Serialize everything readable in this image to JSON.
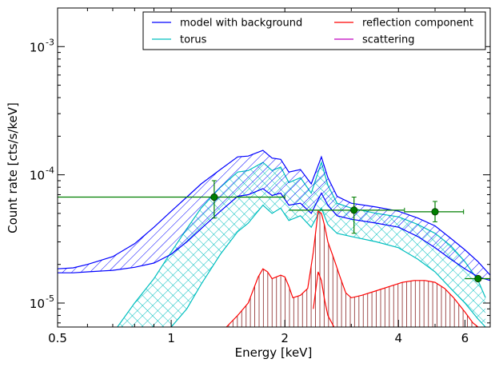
{
  "chart_data": {
    "type": "line",
    "title": "",
    "xlabel": "Energy [keV]",
    "ylabel": "Count rate [cts/s/keV]",
    "xscale": "log",
    "yscale": "log",
    "xlim": [
      0.5,
      7.0
    ],
    "ylim": [
      6.5e-06,
      0.002
    ],
    "grid": false,
    "legend_position": "top-right",
    "x_ticks": [
      {
        "value": 0.5,
        "label": "0.5"
      },
      {
        "value": 1,
        "label": "1"
      },
      {
        "value": 2,
        "label": "2"
      },
      {
        "value": 4,
        "label": "4"
      },
      {
        "value": 6,
        "label": "6"
      }
    ],
    "y_ticks": [
      {
        "value": 1e-05,
        "base": "10",
        "exp": "-5"
      },
      {
        "value": 0.0001,
        "base": "10",
        "exp": "-4"
      },
      {
        "value": 0.001,
        "base": "10",
        "exp": "-3"
      }
    ],
    "legend": [
      {
        "label": "model with background",
        "color": "#0000ff"
      },
      {
        "label": "reflection component",
        "color": "#ff0000"
      },
      {
        "label": "torus",
        "color": "#00bfbf"
      },
      {
        "label": "scattering",
        "color": "#bf00bf"
      }
    ],
    "series": [
      {
        "name": "model with background",
        "color": "#0000ff",
        "x": [
          0.5,
          0.55,
          0.6,
          0.7,
          0.8,
          0.9,
          1.0,
          1.1,
          1.2,
          1.35,
          1.5,
          1.6,
          1.75,
          1.85,
          1.95,
          2.05,
          2.2,
          2.35,
          2.5,
          2.6,
          2.75,
          3.0,
          3.5,
          4.0,
          4.5,
          5.0,
          5.5,
          6.0,
          6.5,
          7.0
        ],
        "upper": [
          1.85e-05,
          1.88e-05,
          2e-05,
          2.3e-05,
          2.9e-05,
          3.9e-05,
          5.2e-05,
          6.7e-05,
          8.5e-05,
          0.00011,
          0.000138,
          0.00014,
          0.000155,
          0.000135,
          0.000132,
          0.000105,
          0.00011,
          8.5e-05,
          0.000138,
          9.5e-05,
          6.8e-05,
          6e-05,
          5.6e-05,
          5.2e-05,
          4.6e-05,
          4e-05,
          3.2e-05,
          2.6e-05,
          2.1e-05,
          1.65e-05
        ],
        "lower": [
          1.72e-05,
          1.72e-05,
          1.75e-05,
          1.8e-05,
          1.9e-05,
          2.05e-05,
          2.4e-05,
          3e-05,
          3.8e-05,
          5.2e-05,
          6.8e-05,
          7e-05,
          7.8e-05,
          6.9e-05,
          7.2e-05,
          5.8e-05,
          6e-05,
          5e-05,
          7.2e-05,
          5.8e-05,
          4.8e-05,
          4.5e-05,
          4.2e-05,
          3.9e-05,
          3.3e-05,
          2.7e-05,
          2.2e-05,
          1.85e-05,
          1.6e-05,
          1.5e-05
        ]
      },
      {
        "name": "torus",
        "color": "#00bfbf",
        "x": [
          0.72,
          0.8,
          0.9,
          1.0,
          1.1,
          1.2,
          1.35,
          1.5,
          1.6,
          1.75,
          1.85,
          1.95,
          2.05,
          2.2,
          2.35,
          2.5,
          2.6,
          2.75,
          3.0,
          3.5,
          4.0,
          4.5,
          5.0,
          5.5,
          6.0,
          6.5,
          6.8
        ],
        "upper": [
          6.5e-06,
          1e-05,
          1.55e-05,
          2.5e-05,
          3.8e-05,
          5.5e-05,
          8e-05,
          0.000105,
          0.000108,
          0.000125,
          0.000108,
          0.000115,
          8.7e-05,
          9.5e-05,
          7.2e-05,
          0.000125,
          8.3e-05,
          6e-05,
          5.5e-05,
          5e-05,
          4.7e-05,
          4.1e-05,
          3.5e-05,
          2.8e-05,
          2.1e-05,
          1.5e-05,
          1.1e-05
        ],
        "lower": [
          null,
          null,
          null,
          6.5e-06,
          9e-06,
          1.4e-05,
          2.4e-05,
          3.6e-05,
          4.2e-05,
          5.8e-05,
          5e-05,
          5.5e-05,
          4.4e-05,
          4.8e-05,
          3.9e-05,
          5.5e-05,
          4.1e-05,
          3.5e-05,
          3.3e-05,
          3e-05,
          2.7e-05,
          2.2e-05,
          1.75e-05,
          1.3e-05,
          1e-05,
          7.5e-06,
          6.5e-06
        ]
      },
      {
        "name": "reflection component",
        "color": "#ff0000",
        "x": [
          1.4,
          1.5,
          1.6,
          1.7,
          1.75,
          1.8,
          1.85,
          1.9,
          1.95,
          2.0,
          2.05,
          2.1,
          2.2,
          2.3,
          2.38,
          2.45,
          2.5,
          2.55,
          2.6,
          2.7,
          2.8,
          2.9,
          3.0,
          3.2,
          3.5,
          3.8,
          4.1,
          4.4,
          4.7,
          5.0,
          5.3,
          5.6,
          6.0,
          6.3,
          6.5
        ],
        "upper": [
          6.5e-06,
          8e-06,
          1e-05,
          1.6e-05,
          1.85e-05,
          1.75e-05,
          1.55e-05,
          1.6e-05,
          1.65e-05,
          1.6e-05,
          1.35e-05,
          1.1e-05,
          1.15e-05,
          1.3e-05,
          2.5e-05,
          5.2e-05,
          5e-05,
          4e-05,
          3e-05,
          2.2e-05,
          1.6e-05,
          1.2e-05,
          1.1e-05,
          1.15e-05,
          1.25e-05,
          1.35e-05,
          1.45e-05,
          1.5e-05,
          1.5e-05,
          1.45e-05,
          1.3e-05,
          1.1e-05,
          8.5e-06,
          7e-06,
          6.5e-06
        ],
        "lower": [
          null,
          null,
          null,
          null,
          null,
          null,
          null,
          null,
          null,
          null,
          null,
          null,
          null,
          null,
          9e-06,
          1.75e-05,
          1.5e-05,
          1.05e-05,
          8e-06,
          6.5e-06,
          null,
          null,
          null,
          null,
          null,
          null,
          null,
          null,
          null,
          null,
          null,
          null,
          null,
          null,
          null
        ]
      },
      {
        "name": "scattering",
        "color": "#bf00bf",
        "x": [],
        "upper": [],
        "lower": []
      }
    ],
    "data_points": {
      "color": "#007f00",
      "points": [
        {
          "x": 1.3,
          "y": 6.7e-05,
          "xerr": [
            0.5,
            2.0
          ],
          "yerr": [
            4.6e-05,
            9e-05
          ]
        },
        {
          "x": 3.05,
          "y": 5.3e-05,
          "xerr": [
            2.05,
            4.15
          ],
          "yerr": [
            3.5e-05,
            6.7e-05
          ]
        },
        {
          "x": 5.0,
          "y": 5.15e-05,
          "xerr": [
            4.15,
            5.95
          ],
          "yerr": [
            4.3e-05,
            6.2e-05
          ]
        },
        {
          "x": 6.5,
          "y": 1.55e-05,
          "xerr": [
            6.0,
            7.0
          ],
          "yerr": [
            null,
            null
          ]
        }
      ]
    }
  }
}
